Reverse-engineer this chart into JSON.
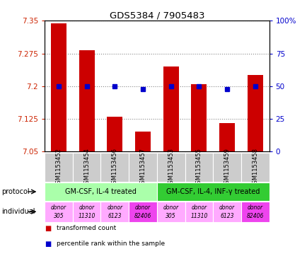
{
  "title": "GDS5384 / 7905483",
  "samples": [
    "GSM1153452",
    "GSM1153454",
    "GSM1153456",
    "GSM1153457",
    "GSM1153453",
    "GSM1153455",
    "GSM1153459",
    "GSM1153458"
  ],
  "transformed_counts": [
    7.345,
    7.283,
    7.13,
    7.095,
    7.245,
    7.205,
    7.115,
    7.225
  ],
  "percentile_ranks": [
    50,
    50,
    50,
    48,
    50,
    50,
    48,
    50
  ],
  "ylim": [
    7.05,
    7.35
  ],
  "ylim_right": [
    0,
    100
  ],
  "yticks_left": [
    7.05,
    7.125,
    7.2,
    7.275,
    7.35
  ],
  "yticks_right": [
    0,
    25,
    50,
    75,
    100
  ],
  "ytick_labels_left": [
    "7.05",
    "7.125",
    "7.2",
    "7.275",
    "7.35"
  ],
  "ytick_labels_right": [
    "0",
    "25",
    "50",
    "75",
    "100%"
  ],
  "bar_color": "#cc0000",
  "dot_color": "#0000cc",
  "bar_bottom": 7.05,
  "protocol_groups": [
    {
      "label": "GM-CSF, IL-4 treated",
      "start": 0,
      "end": 3,
      "color": "#aaffaa"
    },
    {
      "label": "GM-CSF, IL-4, INF-γ treated",
      "start": 4,
      "end": 7,
      "color": "#33cc33"
    }
  ],
  "ind_colors": [
    "#ffaaff",
    "#ffaaff",
    "#ffaaff",
    "#ee44ee",
    "#ffaaff",
    "#ffaaff",
    "#ffaaff",
    "#ee44ee"
  ],
  "ind_labels_top": [
    "donor",
    "donor",
    "donor",
    "donor",
    "donor",
    "donor",
    "donor",
    "donor"
  ],
  "ind_labels_bot": [
    "305",
    "11310",
    "6123",
    "82406",
    "305",
    "11310",
    "6123",
    "82406"
  ],
  "left_axis_color": "#cc2200",
  "right_axis_color": "#0000cc",
  "background_color": "#ffffff",
  "grid_color": "#888888",
  "sample_bg_color": "#cccccc"
}
